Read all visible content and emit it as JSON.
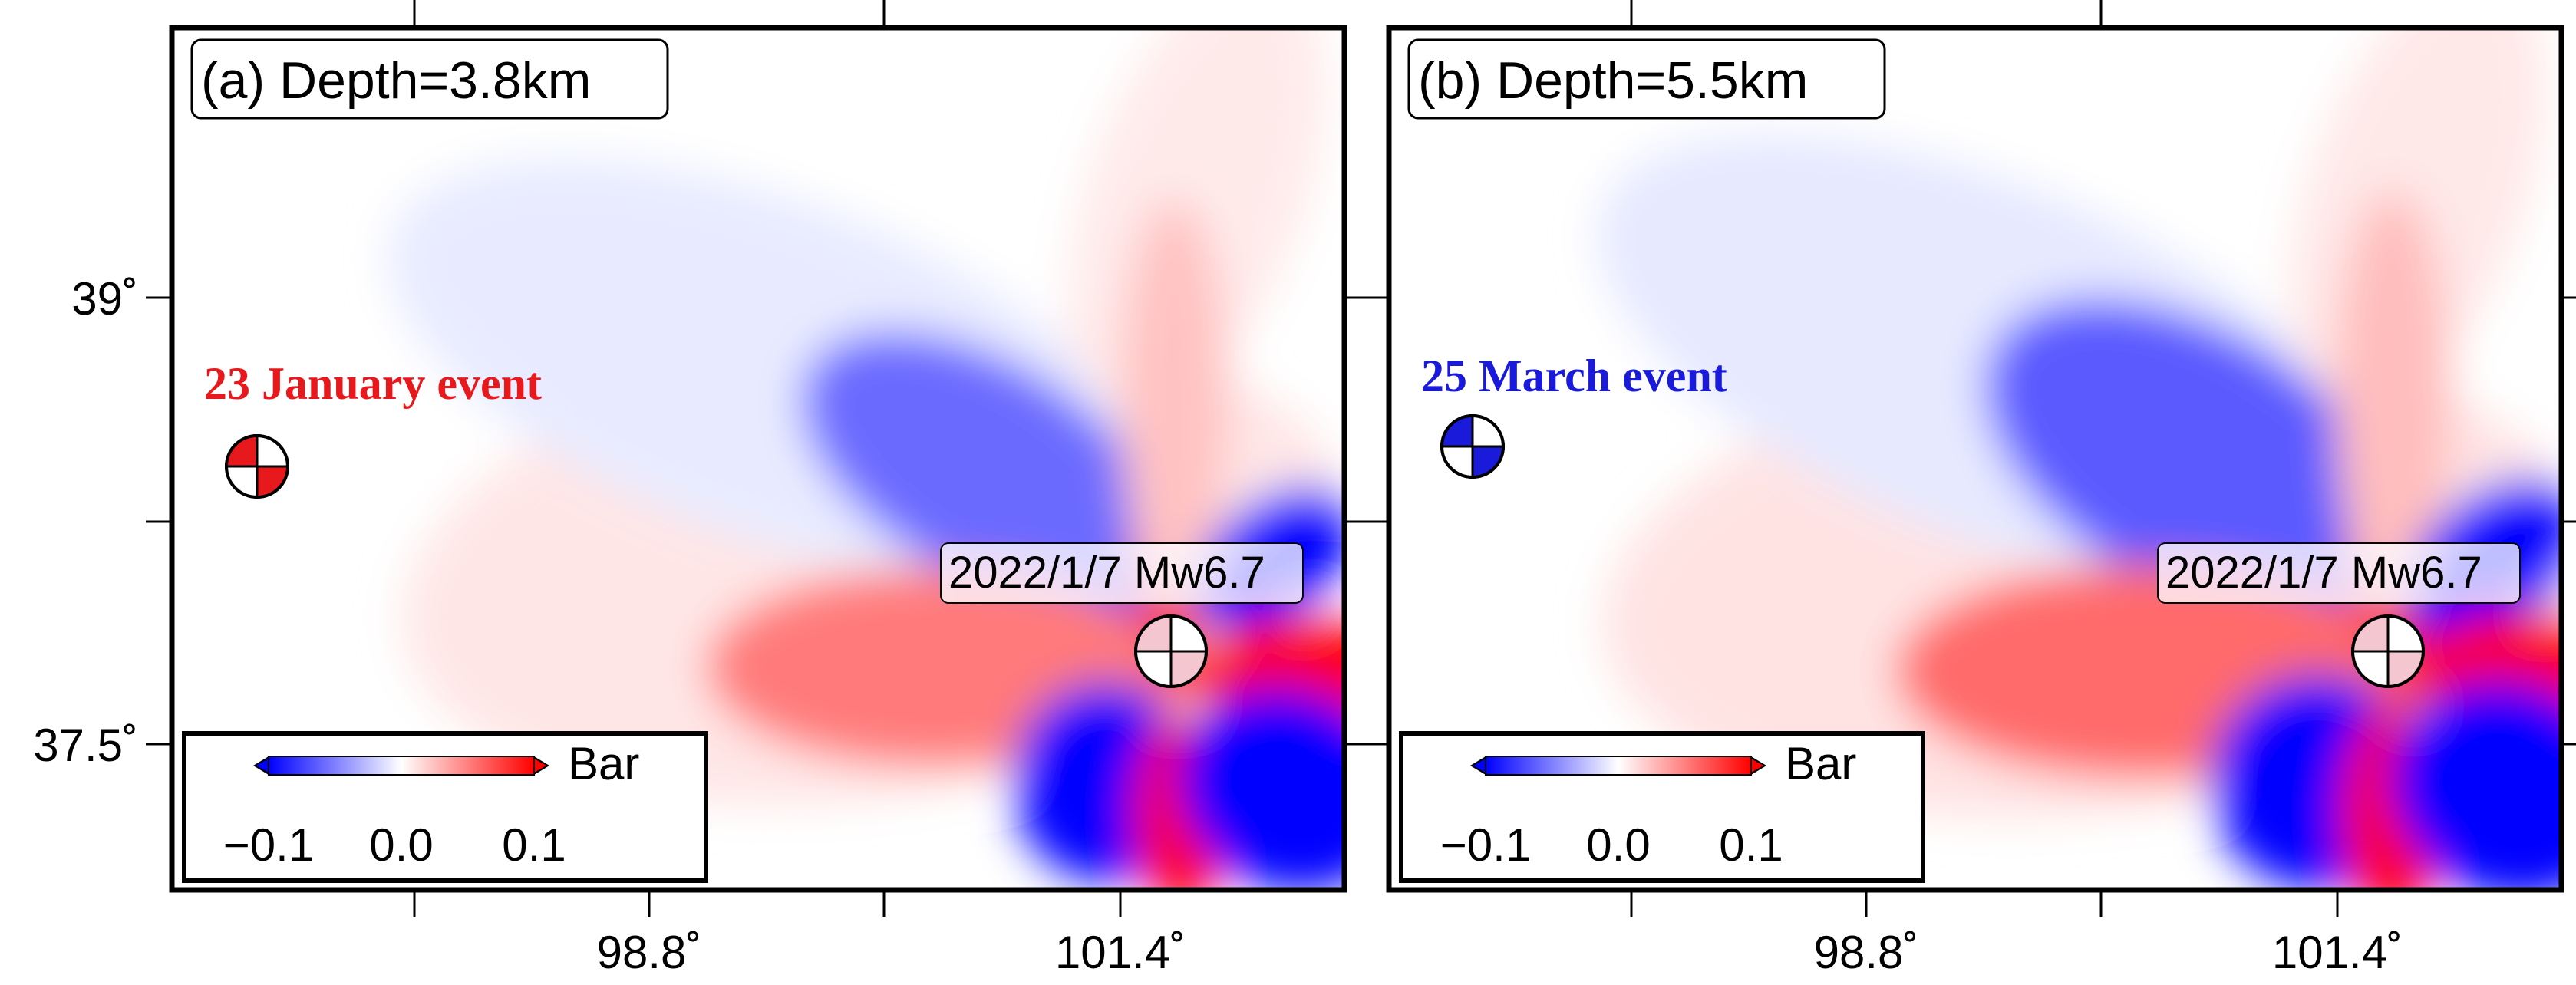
{
  "figure": {
    "panels": [
      {
        "label": "(a) Depth=3.8km",
        "event_label": "23 January event",
        "event_color": "#e8191c",
        "mainshock_label": "2022/1/7 Mw6.7",
        "colorbar": {
          "unit": "Bar",
          "ticks": [
            "−0.1",
            "0.0",
            "0.1"
          ]
        },
        "x_ticks": [
          "98.8˚",
          "101.4˚"
        ],
        "y_ticks": [
          "39˚",
          "37.5˚"
        ]
      },
      {
        "label": "(b) Depth=5.5km",
        "event_label": "25 March event",
        "event_color": "#1a1adb",
        "mainshock_label": "2022/1/7 Mw6.7",
        "colorbar": {
          "unit": "Bar",
          "ticks": [
            "−0.1",
            "0.0",
            "0.1"
          ]
        },
        "x_ticks": [
          "98.8˚",
          "101.4˚"
        ],
        "y_ticks": []
      }
    ],
    "colors": {
      "positive": "#ff0000",
      "negative": "#0000ff",
      "mainshock_beachball": "#f4c6cf"
    }
  }
}
